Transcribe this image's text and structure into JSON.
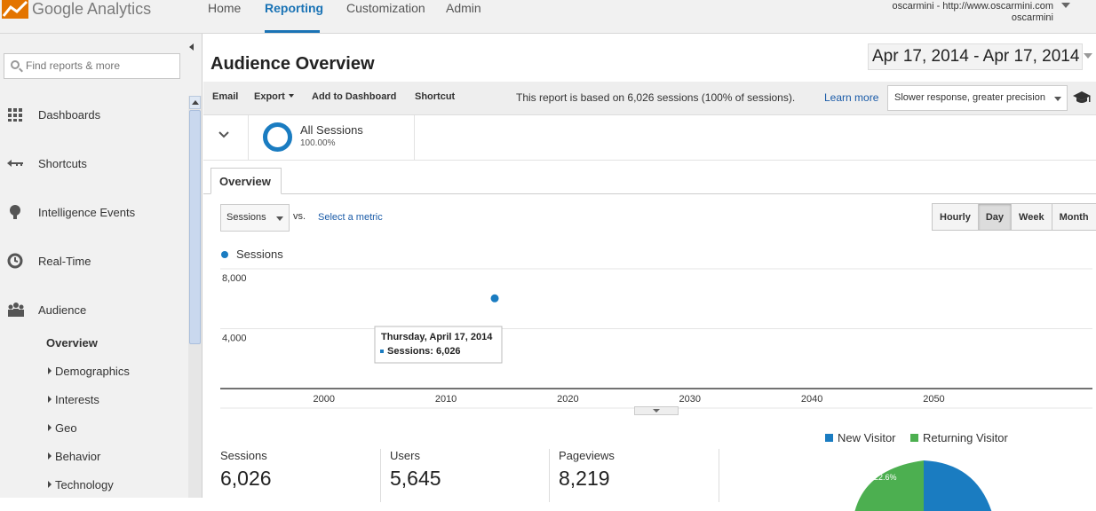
{
  "app": {
    "logo_text": "Google Analytics",
    "nav": [
      "Home",
      "Reporting",
      "Customization",
      "Admin"
    ],
    "active_nav": "Reporting",
    "account_line1": "oscarmini - http://www.oscarmini.com",
    "account_line2": "oscarmini"
  },
  "sidebar": {
    "search_placeholder": "Find reports & more",
    "items": [
      {
        "label": "Dashboards",
        "icon": "grid-icon"
      },
      {
        "label": "Shortcuts",
        "icon": "shortcut-arrow-icon"
      },
      {
        "label": "Intelligence Events",
        "icon": "lightbulb-icon"
      },
      {
        "label": "Real-Time",
        "icon": "clock-icon"
      },
      {
        "label": "Audience",
        "icon": "people-icon"
      }
    ],
    "subitems": [
      "Overview",
      "Demographics",
      "Interests",
      "Geo",
      "Behavior",
      "Technology"
    ]
  },
  "main": {
    "title": "Audience Overview",
    "date_range": "Apr 17, 2014 - Apr 17, 2014",
    "toolbar": {
      "email": "Email",
      "export": "Export",
      "add_dashboard": "Add to Dashboard",
      "shortcut": "Shortcut"
    },
    "report_info": "This report is based on 6,026 sessions (100% of sessions).",
    "learn_more": "Learn more",
    "precision": "Slower response, greater precision",
    "segment": {
      "name": "All Sessions",
      "pct": "100.00%"
    },
    "tab": "Overview",
    "metric_select": "Sessions",
    "vs": "vs.",
    "select_metric": "Select a metric",
    "granularity": [
      "Hourly",
      "Day",
      "Week",
      "Month"
    ],
    "active_granularity": "Day",
    "legend_label": "Sessions",
    "tooltip_title": "Thursday, April 17, 2014",
    "tooltip_value": "Sessions: 6,026",
    "stats": [
      {
        "label": "Sessions",
        "value": "6,026"
      },
      {
        "label": "Users",
        "value": "5,645"
      },
      {
        "label": "Pageviews",
        "value": "8,219"
      }
    ],
    "pie_legend": [
      {
        "label": "New Visitor",
        "color": "#1a7cc1"
      },
      {
        "label": "Returning Visitor",
        "color": "#4caf50"
      }
    ],
    "pie_label": "22.6%"
  },
  "chart_data": {
    "type": "scatter",
    "series": [
      {
        "name": "Sessions",
        "values": [
          {
            "x": 2014,
            "y": 6026
          }
        ]
      }
    ],
    "yticks": [
      "8,000",
      "4,000"
    ],
    "xticks": [
      "2000",
      "2010",
      "2020",
      "2030",
      "2040",
      "2050"
    ],
    "ylim": [
      0,
      8000
    ],
    "xlim": [
      1991.5,
      2063
    ],
    "color": "#1a7cc1"
  }
}
